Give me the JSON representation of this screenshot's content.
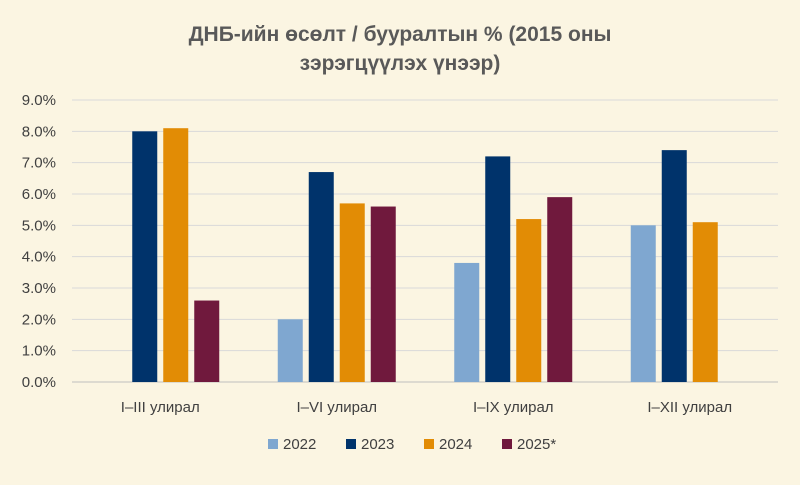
{
  "chart_data": {
    "type": "bar",
    "title_lines": [
      "ДНБ-ийн өсөлт / бууралтын % (2015 оны",
      "зэрэгцүүлэх үнээр)"
    ],
    "xlabel": "",
    "ylabel": "",
    "categories": [
      "I–III улирал",
      "I–VI улирал",
      "I–IX улирал",
      "I–XII улирал"
    ],
    "series": [
      {
        "name": "2022",
        "color": "#7fa7d0",
        "values": [
          null,
          2.0,
          3.8,
          5.0
        ]
      },
      {
        "name": "2023",
        "color": "#00336b",
        "values": [
          8.0,
          6.7,
          7.2,
          7.4
        ]
      },
      {
        "name": "2024",
        "color": "#e28c05",
        "values": [
          8.1,
          5.7,
          5.2,
          5.1
        ]
      },
      {
        "name": "2025*",
        "color": "#70193d",
        "values": [
          2.6,
          5.6,
          5.9,
          null
        ]
      }
    ],
    "ylim": [
      0,
      9
    ],
    "yticks": [
      "0.0%",
      "1.0%",
      "2.0%",
      "3.0%",
      "4.0%",
      "5.0%",
      "6.0%",
      "7.0%",
      "8.0%",
      "9.0%"
    ],
    "grid": true,
    "legend_position": "bottom-center"
  }
}
